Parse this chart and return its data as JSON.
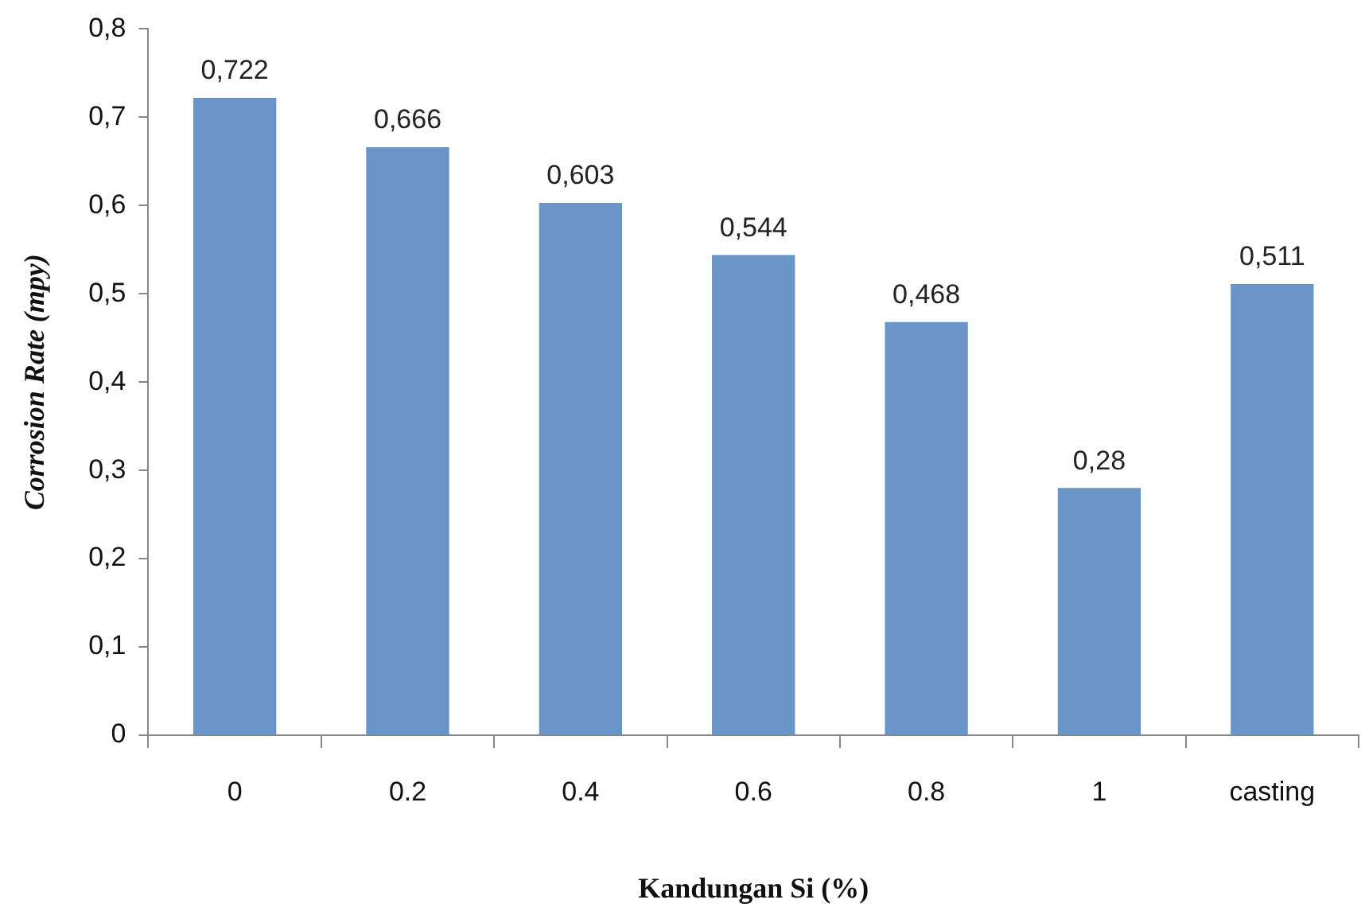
{
  "chart_data": {
    "type": "bar",
    "xlabel": "Kandungan Si (%)",
    "ylabel": "Corrosion Rate (mpy)",
    "categories": [
      "0",
      "0.2",
      "0.4",
      "0.6",
      "0.8",
      "1",
      "casting"
    ],
    "values": [
      0.722,
      0.666,
      0.603,
      0.544,
      0.468,
      0.28,
      0.511
    ],
    "value_labels": [
      "0,722",
      "0,666",
      "0,603",
      "0,544",
      "0,468",
      "0,28",
      "0,511"
    ],
    "color": "#6a95c9",
    "ylim": [
      0,
      0.8
    ],
    "yticks": [
      {
        "value": 0,
        "label": "0"
      },
      {
        "value": 0.1,
        "label": "0,1"
      },
      {
        "value": 0.2,
        "label": "0,2"
      },
      {
        "value": 0.3,
        "label": "0,3"
      },
      {
        "value": 0.4,
        "label": "0,4"
      },
      {
        "value": 0.5,
        "label": "0,5"
      },
      {
        "value": 0.6,
        "label": "0,6"
      },
      {
        "value": 0.7,
        "label": "0,7"
      },
      {
        "value": 0.8,
        "label": "0,8"
      }
    ],
    "grid": false,
    "legend": false
  }
}
